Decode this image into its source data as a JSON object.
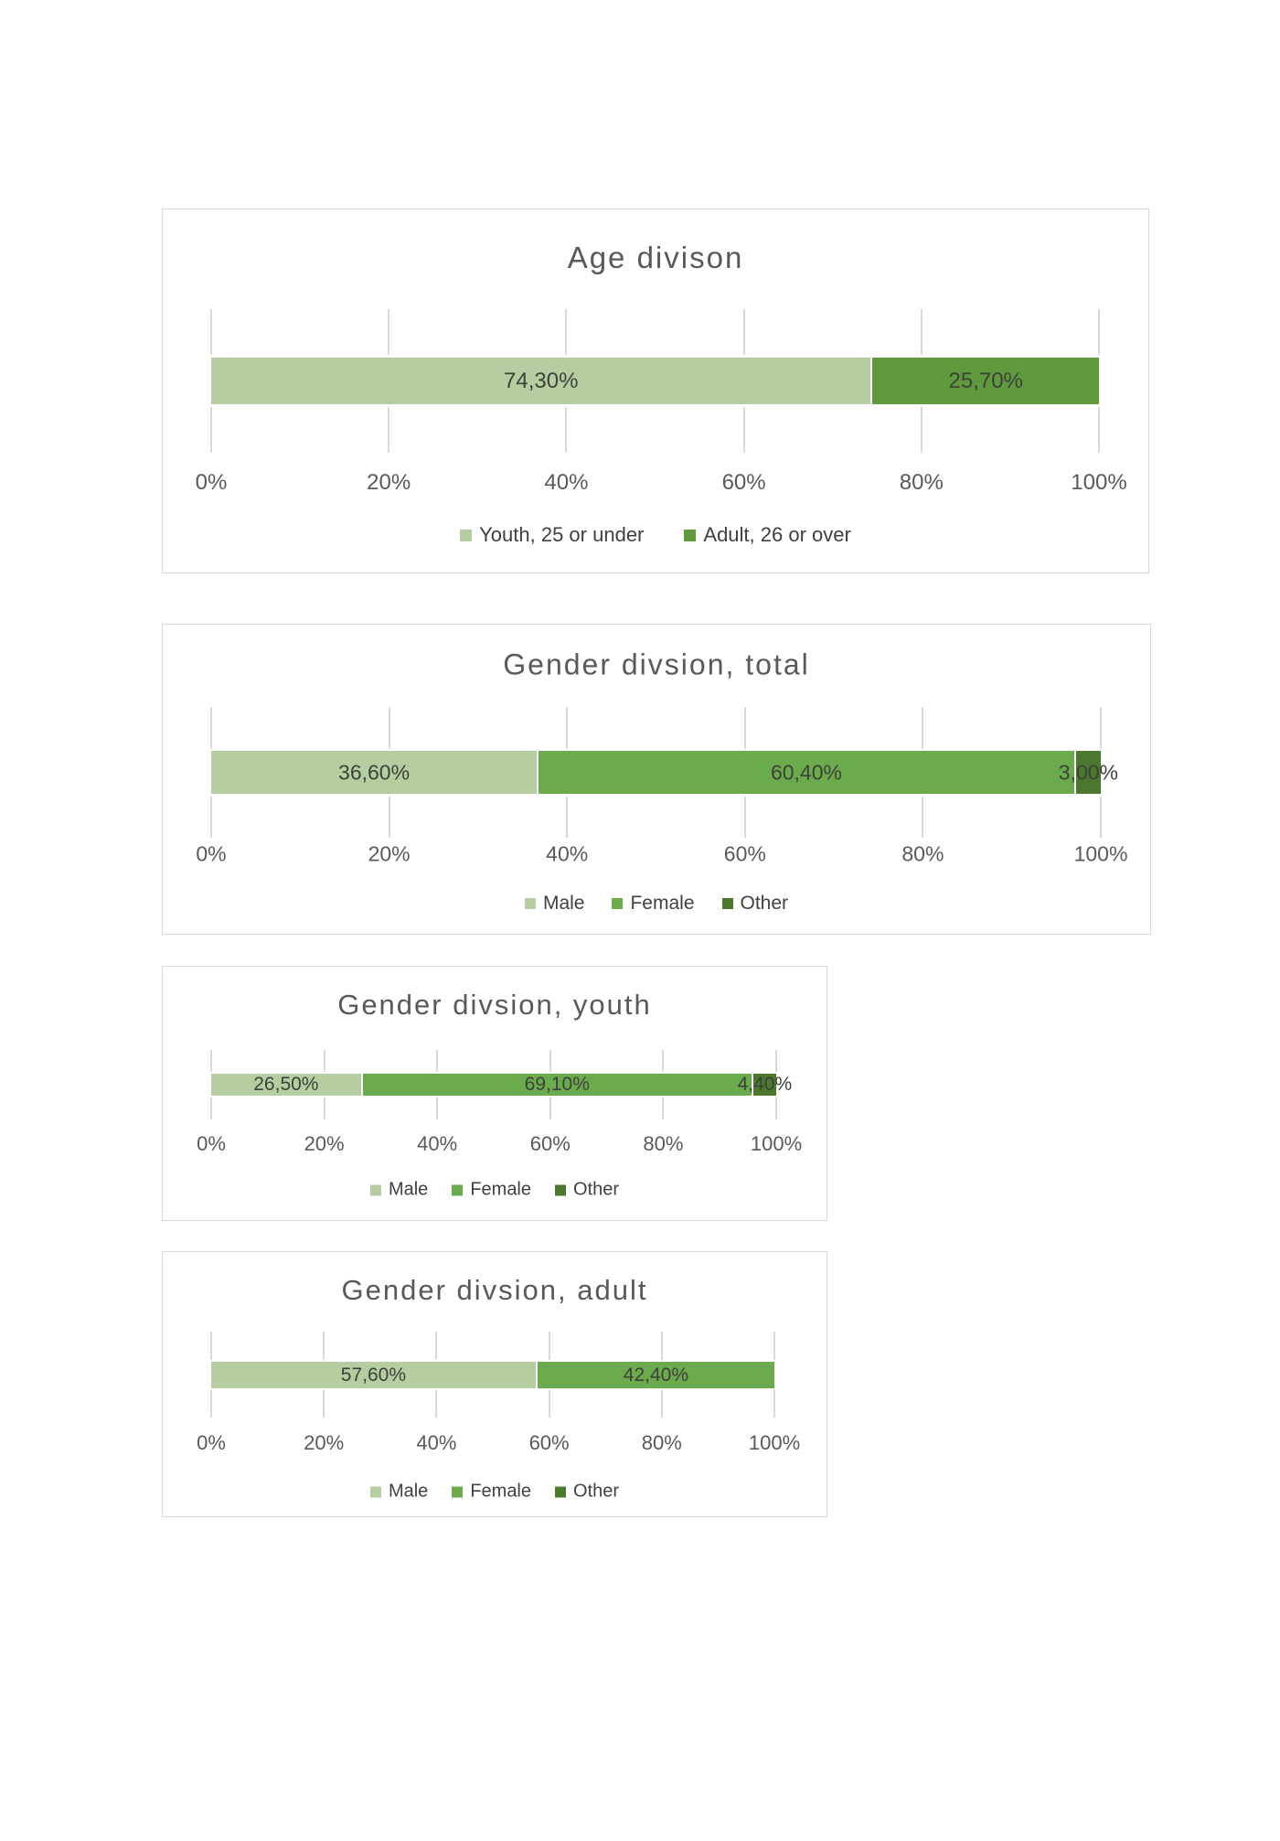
{
  "page": {
    "background": "#ffffff"
  },
  "palette": {
    "light_green": "#b5cda1",
    "medium_green": "#6baa4d",
    "age_adult_green": "#61993f",
    "dark_green": "#4b782e",
    "title_gray": "#595959",
    "axis_gray": "#595959",
    "data_label_gray": "#3d4238",
    "box_border_gray": "#d9d9d9",
    "tick_gray": "#d9d9d9"
  },
  "chart_data": [
    {
      "id": "age-division",
      "type": "bar",
      "stacked": true,
      "orientation": "horizontal",
      "title": "Age divison",
      "xlim": [
        0,
        100
      ],
      "x_ticks": [
        "0%",
        "20%",
        "40%",
        "60%",
        "80%",
        "100%"
      ],
      "grid": "tick-stubs-only",
      "legend_position": "bottom",
      "series": [
        {
          "name": "Youth, 25 or under",
          "value": 74.3,
          "label": "74,30%",
          "color": "#b5cda1"
        },
        {
          "name": "Adult, 26 or over",
          "value": 25.7,
          "label": "25,70%",
          "color": "#61993f"
        }
      ]
    },
    {
      "id": "gender-division-total",
      "type": "bar",
      "stacked": true,
      "orientation": "horizontal",
      "title": "Gender divsion, total",
      "xlim": [
        0,
        100
      ],
      "x_ticks": [
        "0%",
        "20%",
        "40%",
        "60%",
        "80%",
        "100%"
      ],
      "grid": "tick-stubs-only",
      "legend_position": "bottom",
      "series": [
        {
          "name": "Male",
          "value": 36.6,
          "label": "36,60%",
          "color": "#b5cda1"
        },
        {
          "name": "Female",
          "value": 60.4,
          "label": "60,40%",
          "color": "#6baa4d"
        },
        {
          "name": "Other",
          "value": 3.0,
          "label": "3,00%",
          "color": "#4b782e"
        }
      ]
    },
    {
      "id": "gender-division-youth",
      "type": "bar",
      "stacked": true,
      "orientation": "horizontal",
      "title": "Gender divsion, youth",
      "xlim": [
        0,
        100
      ],
      "x_ticks": [
        "0%",
        "20%",
        "40%",
        "60%",
        "80%",
        "100%"
      ],
      "grid": "tick-stubs-only",
      "legend_position": "bottom",
      "series": [
        {
          "name": "Male",
          "value": 26.5,
          "label": "26,50%",
          "color": "#b5cda1"
        },
        {
          "name": "Female",
          "value": 69.1,
          "label": "69,10%",
          "color": "#6baa4d"
        },
        {
          "name": "Other",
          "value": 4.4,
          "label": "4,40%",
          "color": "#4b782e"
        }
      ]
    },
    {
      "id": "gender-division-adult",
      "type": "bar",
      "stacked": true,
      "orientation": "horizontal",
      "title": "Gender divsion, adult",
      "xlim": [
        0,
        100
      ],
      "x_ticks": [
        "0%",
        "20%",
        "40%",
        "60%",
        "80%",
        "100%"
      ],
      "grid": "tick-stubs-only",
      "legend_position": "bottom",
      "series": [
        {
          "name": "Male",
          "value": 57.6,
          "label": "57,60%",
          "color": "#b5cda1"
        },
        {
          "name": "Female",
          "value": 42.4,
          "label": "42,40%",
          "color": "#6baa4d"
        },
        {
          "name": "Other",
          "value": 0,
          "label": "",
          "color": "#4b782e"
        }
      ]
    }
  ]
}
